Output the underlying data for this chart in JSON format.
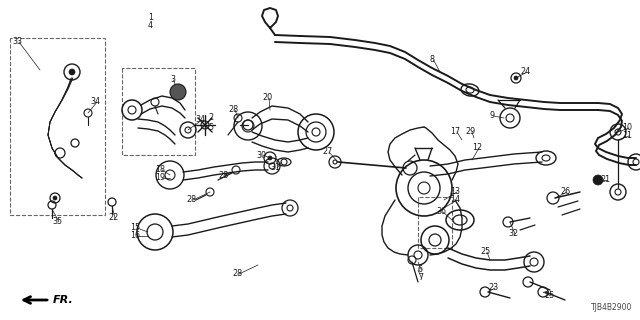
{
  "diagram_code": "TJB4B2900",
  "bg_color": "#ffffff",
  "fig_width": 6.4,
  "fig_height": 3.2,
  "dpi": 100,
  "line_color": "#1a1a1a",
  "text_color": "#1a1a1a"
}
